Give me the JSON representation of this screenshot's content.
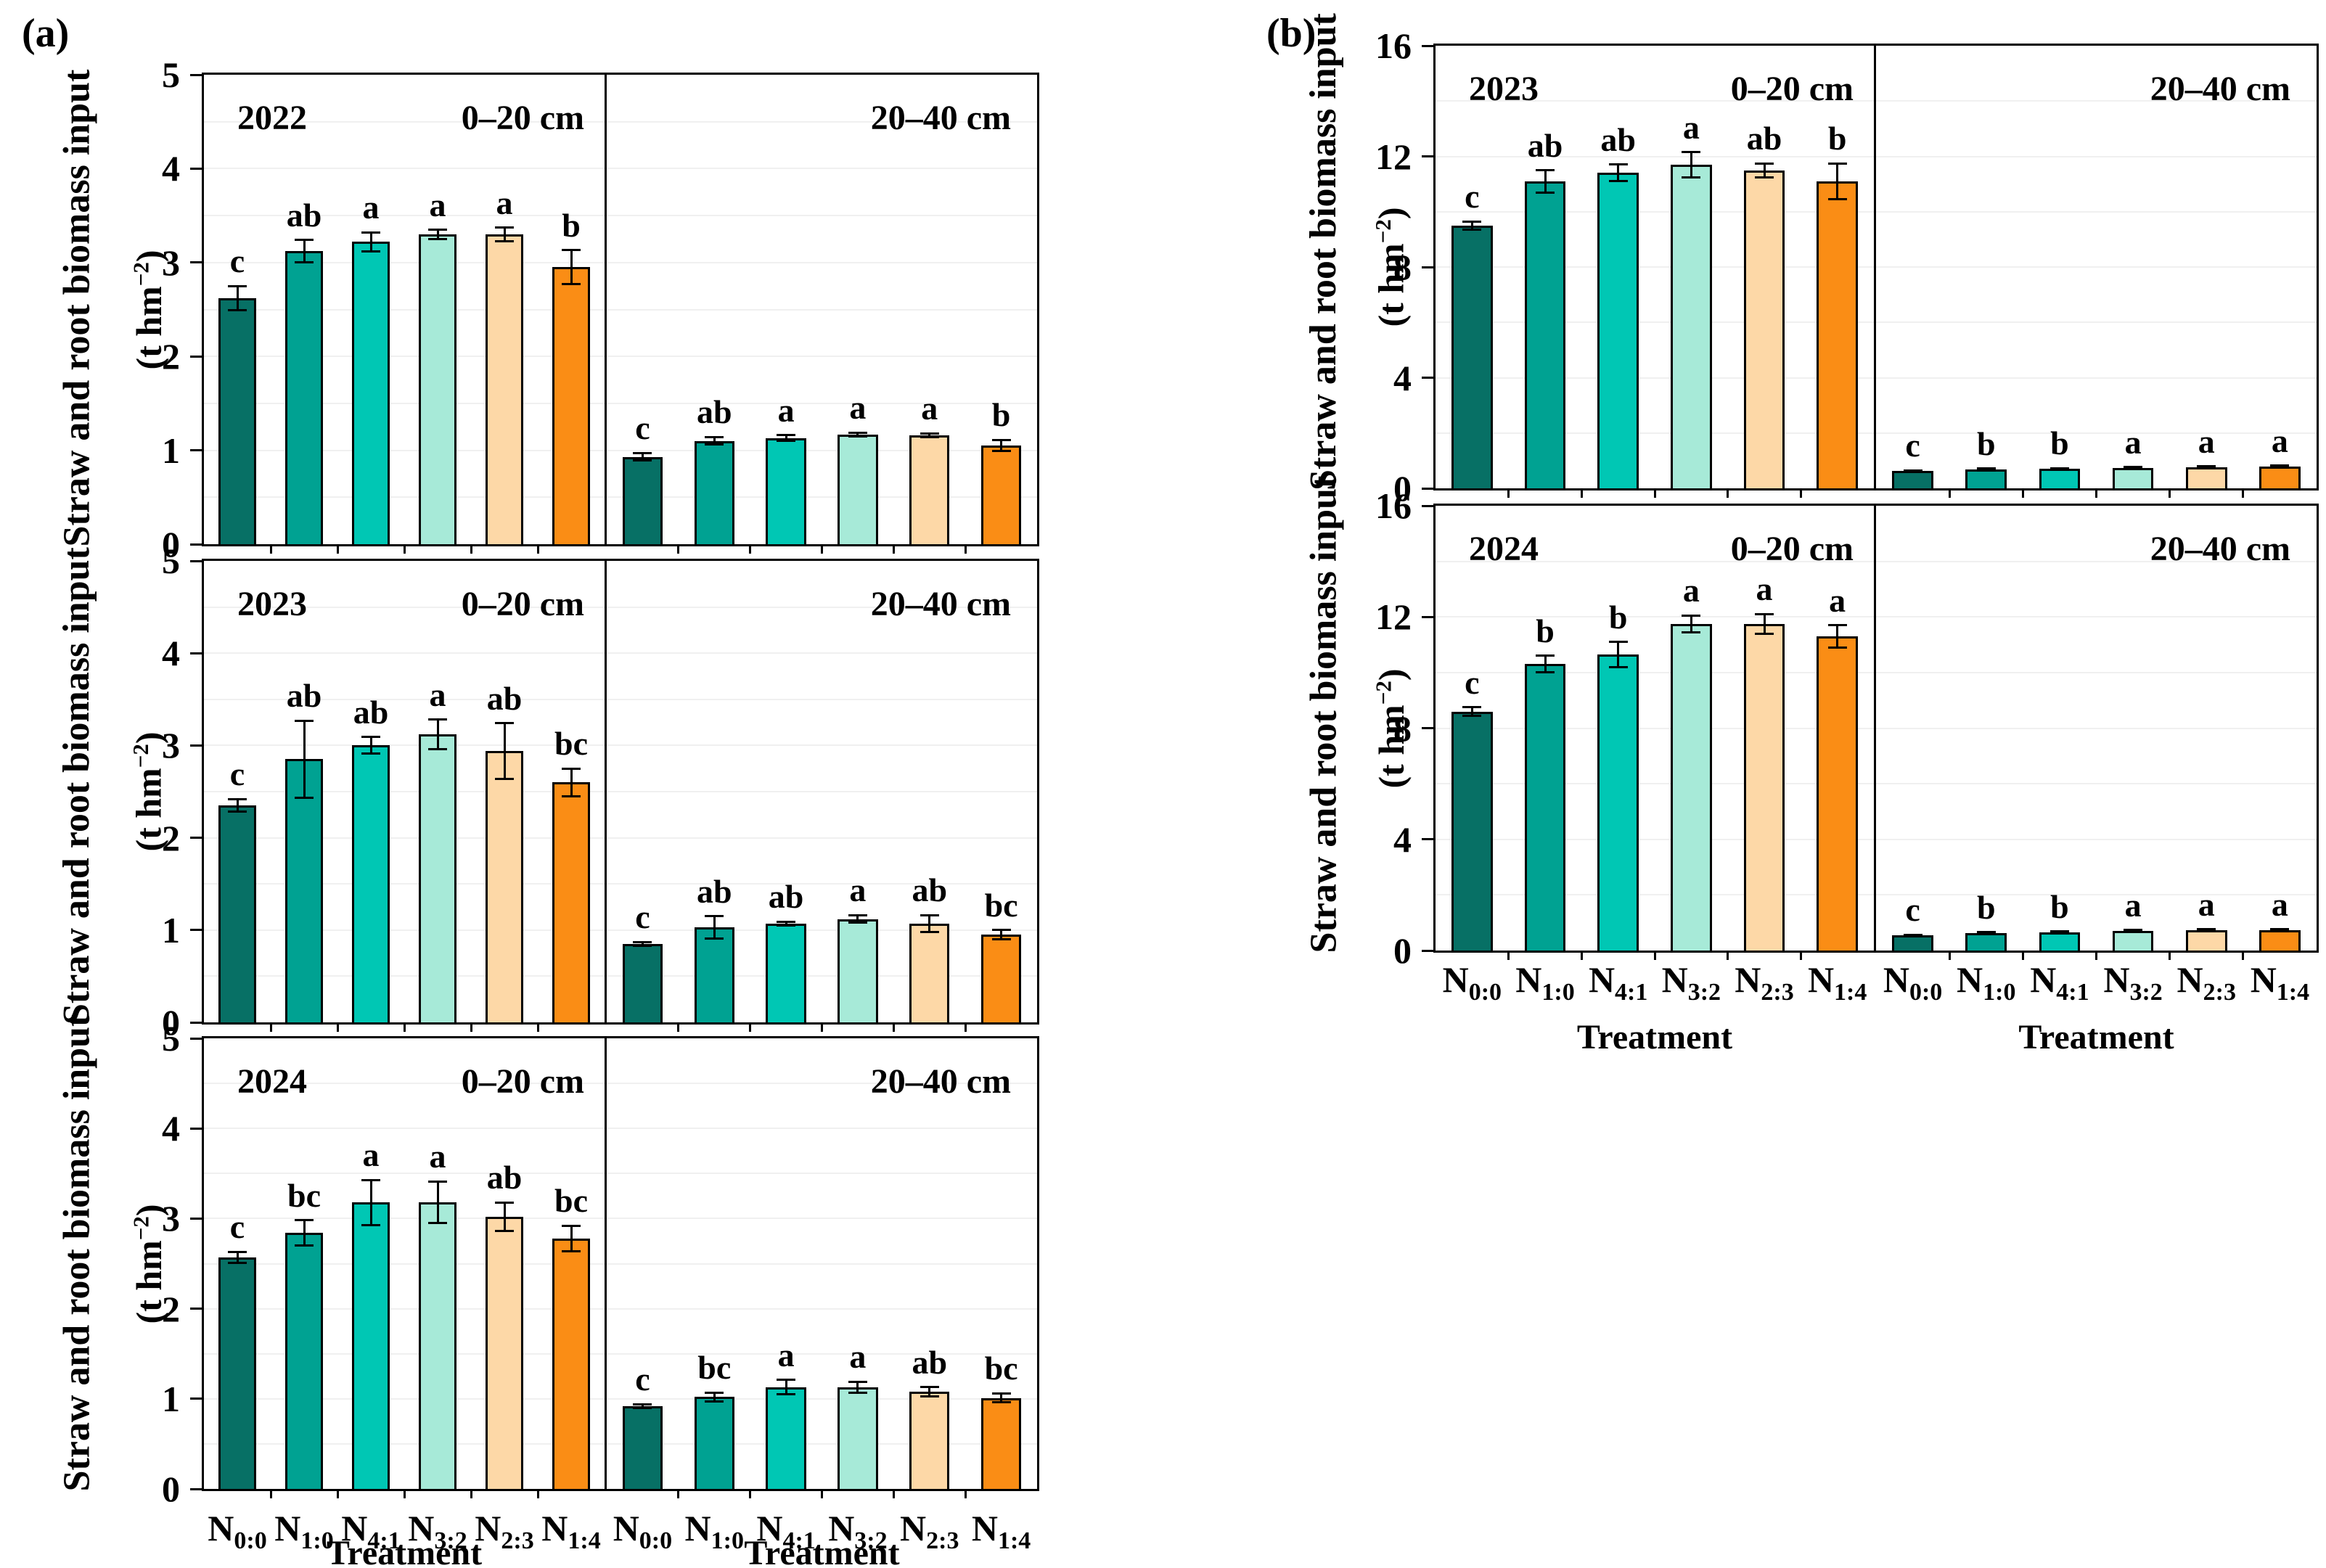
{
  "figure": {
    "panel_a_label": "(a)",
    "panel_b_label": "(b)"
  },
  "colors": {
    "bar_fills": [
      "#077065",
      "#00a292",
      "#00c7b4",
      "#a7ead8",
      "#fdd8a7",
      "#fa8d15"
    ],
    "bar_border": "#000000",
    "error_bar": "#000000",
    "gridline": "#f0f0f0"
  },
  "chart_data": {
    "type": "bar",
    "ylabel": "Straw and root biomass input",
    "unit": {
      "base": "(t hm",
      "sup": "−2",
      "close": ")"
    },
    "xlabel": "Treatment",
    "treatment_base": "N",
    "treatments": [
      "0:0",
      "1:0",
      "4:1",
      "3:2",
      "2:3",
      "1:4"
    ],
    "groups": [
      {
        "id": "a",
        "ylim": [
          0,
          5
        ],
        "yticks": [
          0,
          1,
          2,
          3,
          4,
          5
        ],
        "rows": [
          {
            "year": "2022",
            "panels": [
              {
                "depth": "0–20 cm",
                "values": [
                  2.62,
                  3.12,
                  3.22,
                  3.3,
                  3.3,
                  2.95
                ],
                "errors": [
                  0.13,
                  0.12,
                  0.1,
                  0.05,
                  0.07,
                  0.18
                ],
                "letters": [
                  "c",
                  "ab",
                  "a",
                  "a",
                  "a",
                  "b"
                ]
              },
              {
                "depth": "20–40 cm",
                "values": [
                  0.93,
                  1.1,
                  1.13,
                  1.17,
                  1.16,
                  1.05
                ],
                "errors": [
                  0.04,
                  0.04,
                  0.03,
                  0.02,
                  0.02,
                  0.06
                ],
                "letters": [
                  "c",
                  "ab",
                  "a",
                  "a",
                  "a",
                  "b"
                ]
              }
            ]
          },
          {
            "year": "2023",
            "panels": [
              {
                "depth": "0–20 cm",
                "values": [
                  2.35,
                  2.85,
                  3.0,
                  3.12,
                  2.94,
                  2.6
                ],
                "errors": [
                  0.07,
                  0.42,
                  0.09,
                  0.16,
                  0.3,
                  0.15
                ],
                "letters": [
                  "c",
                  "ab",
                  "ab",
                  "a",
                  "ab",
                  "bc"
                ]
              },
              {
                "depth": "20–40 cm",
                "values": [
                  0.85,
                  1.03,
                  1.07,
                  1.12,
                  1.07,
                  0.95
                ],
                "errors": [
                  0.02,
                  0.12,
                  0.02,
                  0.04,
                  0.09,
                  0.05
                ],
                "letters": [
                  "c",
                  "ab",
                  "ab",
                  "a",
                  "ab",
                  "bc"
                ]
              }
            ]
          },
          {
            "year": "2024",
            "panels": [
              {
                "depth": "0–20 cm",
                "values": [
                  2.57,
                  2.84,
                  3.18,
                  3.18,
                  3.02,
                  2.78
                ],
                "errors": [
                  0.06,
                  0.14,
                  0.25,
                  0.23,
                  0.16,
                  0.14
                ],
                "letters": [
                  "c",
                  "bc",
                  "a",
                  "a",
                  "ab",
                  "bc"
                ]
              },
              {
                "depth": "20–40 cm",
                "values": [
                  0.92,
                  1.02,
                  1.13,
                  1.13,
                  1.08,
                  1.01
                ],
                "errors": [
                  0.02,
                  0.05,
                  0.08,
                  0.06,
                  0.05,
                  0.05
                ],
                "letters": [
                  "c",
                  "bc",
                  "a",
                  "a",
                  "ab",
                  "bc"
                ]
              }
            ]
          }
        ]
      },
      {
        "id": "b",
        "ylim": [
          0,
          16
        ],
        "yticks": [
          0,
          4,
          8,
          12,
          16
        ],
        "rows": [
          {
            "year": "2023",
            "panels": [
              {
                "depth": "0–20 cm",
                "values": [
                  9.5,
                  11.1,
                  11.4,
                  11.7,
                  11.5,
                  11.1
                ],
                "errors": [
                  0.15,
                  0.4,
                  0.3,
                  0.45,
                  0.25,
                  0.65
                ],
                "letters": [
                  "c",
                  "ab",
                  "ab",
                  "a",
                  "ab",
                  "b"
                ]
              },
              {
                "depth": "20–40 cm",
                "values": [
                  0.62,
                  0.68,
                  0.7,
                  0.74,
                  0.76,
                  0.78
                ],
                "errors": [
                  0.03,
                  0.03,
                  0.03,
                  0.03,
                  0.03,
                  0.04
                ],
                "letters": [
                  "c",
                  "b",
                  "b",
                  "a",
                  "a",
                  "a"
                ]
              }
            ]
          },
          {
            "year": "2024",
            "panels": [
              {
                "depth": "0–20 cm",
                "values": [
                  8.6,
                  10.3,
                  10.65,
                  11.75,
                  11.75,
                  11.3
                ],
                "errors": [
                  0.15,
                  0.3,
                  0.45,
                  0.3,
                  0.35,
                  0.4
                ],
                "letters": [
                  "c",
                  "b",
                  "b",
                  "a",
                  "a",
                  "a"
                ]
              },
              {
                "depth": "20–40 cm",
                "values": [
                  0.55,
                  0.63,
                  0.66,
                  0.71,
                  0.74,
                  0.74
                ],
                "errors": [
                  0.02,
                  0.03,
                  0.03,
                  0.03,
                  0.03,
                  0.03
                ],
                "letters": [
                  "c",
                  "b",
                  "b",
                  "a",
                  "a",
                  "a"
                ]
              }
            ]
          }
        ]
      }
    ]
  }
}
